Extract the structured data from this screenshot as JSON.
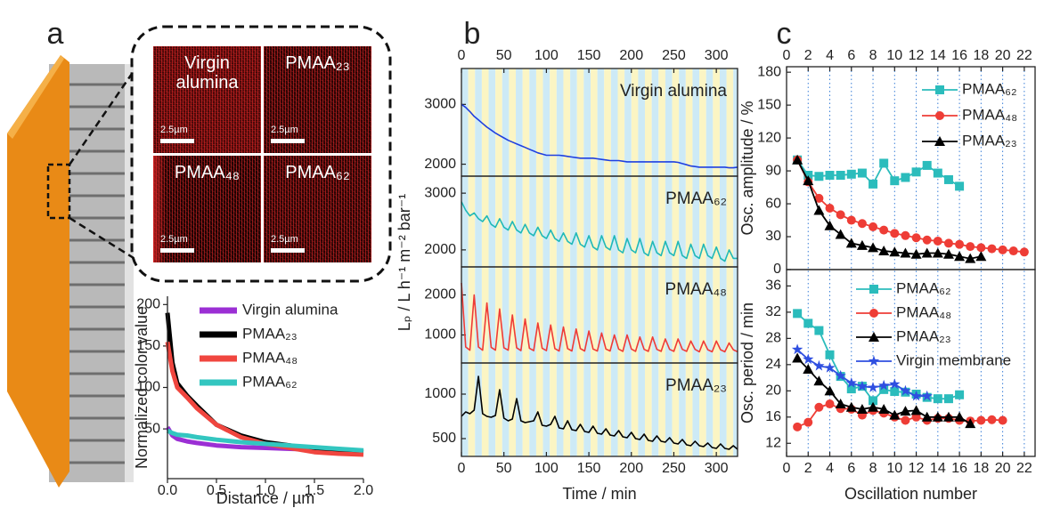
{
  "micrographs": [
    {
      "label": "Virgin alumina",
      "scale": "2.5µm"
    },
    {
      "label": "PMAA₂₃",
      "scale": "2.5µm"
    },
    {
      "label": "PMAA₄₈",
      "scale": "2.5µm"
    },
    {
      "label": "PMAA₆₂",
      "scale": "2.5µm"
    }
  ],
  "chart_data": [
    {
      "type": "line",
      "panel": "a",
      "xlabel": "Distance / µm",
      "ylabel": "Normalized color value",
      "x": [
        0,
        0.05,
        0.1,
        0.2,
        0.3,
        0.5,
        0.75,
        1,
        1.25,
        1.5,
        1.75,
        2
      ],
      "xlim": [
        0,
        2
      ],
      "xticks": [
        {
          "value": 0,
          "label": "0.0"
        },
        {
          "value": 0.5,
          "label": "0.5"
        },
        {
          "value": 1,
          "label": "1.0"
        },
        {
          "value": 1.5,
          "label": "1.5"
        },
        {
          "value": 2,
          "label": "2.0"
        }
      ],
      "ylim": [
        -10,
        210
      ],
      "yticks": [
        50,
        100,
        150,
        200
      ],
      "legend": "upper right",
      "series": [
        {
          "name": "Virgin alumina",
          "color": "#9b2fd4",
          "values": [
            52,
            42,
            38,
            35,
            33,
            30,
            28,
            27,
            26,
            25,
            24,
            23
          ]
        },
        {
          "name": "PMAA₂₃",
          "color": "#000000",
          "values": [
            190,
            130,
            105,
            90,
            78,
            55,
            42,
            34,
            30,
            26,
            24,
            22
          ]
        },
        {
          "name": "PMAA₄₈",
          "color": "#f0463f",
          "values": [
            155,
            120,
            100,
            88,
            75,
            55,
            40,
            32,
            27,
            22,
            20,
            19
          ]
        },
        {
          "name": "PMAA₆₂",
          "color": "#33c6c0",
          "values": [
            48,
            45,
            43,
            42,
            40,
            37,
            34,
            32,
            30,
            28,
            26,
            24
          ]
        }
      ]
    },
    {
      "type": "stacked-line",
      "panel": "b",
      "xlabel": "Time / min",
      "ylabel": "Lₚ / L h⁻¹ m⁻² bar⁻¹",
      "x": [
        0,
        5,
        10,
        15,
        20,
        25,
        30,
        35,
        40,
        45,
        50,
        55,
        60,
        65,
        70,
        75,
        80,
        85,
        90,
        95,
        100,
        105,
        110,
        115,
        120,
        125,
        130,
        135,
        140,
        145,
        150,
        155,
        160,
        165,
        170,
        175,
        180,
        185,
        190,
        195,
        200,
        205,
        210,
        215,
        220,
        225,
        230,
        235,
        240,
        245,
        250,
        255,
        260,
        265,
        270,
        275,
        280,
        285,
        290,
        295,
        300,
        305,
        310,
        315,
        320,
        325
      ],
      "xlim": [
        0,
        325
      ],
      "xticks": [
        0,
        50,
        100,
        150,
        200,
        250,
        300
      ],
      "subplots": [
        {
          "ylim": [
            1800,
            3600
          ],
          "yticks": [
            2000,
            3000
          ],
          "series": [
            {
              "name": "Virgin alumina",
              "color": "#1f3fe0",
              "values": [
                3000,
                2950,
                2880,
                2800,
                2740,
                2680,
                2620,
                2570,
                2520,
                2480,
                2440,
                2400,
                2370,
                2340,
                2310,
                2280,
                2250,
                2220,
                2190,
                2170,
                2150,
                2150,
                2150,
                2150,
                2140,
                2130,
                2120,
                2110,
                2100,
                2100,
                2100,
                2100,
                2090,
                2080,
                2070,
                2060,
                2060,
                2060,
                2050,
                2040,
                2040,
                2040,
                2040,
                2040,
                2040,
                2040,
                2040,
                2040,
                2040,
                2040,
                2040,
                2030,
                2010,
                1990,
                1970,
                1960,
                1950,
                1950,
                1950,
                1950,
                1950,
                1950,
                1950,
                1940,
                1940,
                1950
              ]
            }
          ]
        },
        {
          "ylim": [
            1700,
            3300
          ],
          "yticks": [
            2000,
            3000
          ],
          "series": [
            {
              "name": "PMAA₆₂",
              "color": "#1fb8b8",
              "values": [
                2850,
                2700,
                2600,
                2650,
                2550,
                2500,
                2600,
                2450,
                2400,
                2550,
                2400,
                2350,
                2500,
                2350,
                2300,
                2450,
                2300,
                2250,
                2400,
                2250,
                2200,
                2350,
                2200,
                2150,
                2300,
                2150,
                2100,
                2300,
                2100,
                2050,
                2250,
                2050,
                2000,
                2250,
                2050,
                2000,
                2250,
                2000,
                1950,
                2200,
                2000,
                1950,
                2200,
                1950,
                1900,
                2150,
                1950,
                1900,
                2150,
                1950,
                1900,
                2150,
                1900,
                1850,
                2100,
                1900,
                1850,
                2100,
                1900,
                1850,
                2050,
                1850,
                1800,
                2000,
                1850,
                1850
              ]
            }
          ]
        },
        {
          "ylim": [
            300,
            2700
          ],
          "yticks": [
            1000,
            2000
          ],
          "series": [
            {
              "name": "PMAA₄₈",
              "color": "#ef3b36",
              "values": [
                2300,
                700,
                620,
                2000,
                700,
                620,
                1800,
                690,
                620,
                1650,
                680,
                620,
                1500,
                680,
                610,
                1400,
                670,
                610,
                1300,
                670,
                610,
                1250,
                660,
                600,
                1200,
                660,
                600,
                1150,
                660,
                600,
                1100,
                650,
                600,
                1050,
                650,
                600,
                1000,
                650,
                590,
                1000,
                650,
                590,
                950,
                640,
                590,
                950,
                640,
                590,
                900,
                640,
                590,
                900,
                640,
                590,
                850,
                640,
                580,
                850,
                630,
                580,
                850,
                630,
                580,
                800,
                630,
                580
              ]
            }
          ]
        },
        {
          "ylim": [
            300,
            1350
          ],
          "yticks": [
            500,
            1000
          ],
          "series": [
            {
              "name": "PMAA₂₃",
              "color": "#000000",
              "values": [
                750,
                800,
                780,
                820,
                1200,
                780,
                750,
                740,
                760,
                1050,
                730,
                700,
                720,
                950,
                700,
                680,
                690,
                700,
                800,
                650,
                640,
                660,
                750,
                620,
                610,
                700,
                600,
                590,
                660,
                580,
                570,
                640,
                560,
                550,
                610,
                540,
                530,
                590,
                520,
                510,
                570,
                500,
                490,
                550,
                480,
                470,
                530,
                470,
                460,
                510,
                450,
                440,
                490,
                430,
                420,
                470,
                420,
                410,
                450,
                400,
                390,
                440,
                390,
                380,
                420,
                380
              ]
            }
          ]
        }
      ]
    },
    {
      "type": "marker-line",
      "panel": "c",
      "xlabel": "Oscillation number",
      "xlim": [
        0,
        23
      ],
      "xticks": [
        0,
        2,
        4,
        6,
        8,
        10,
        12,
        14,
        16,
        18,
        20,
        22
      ],
      "grid": true,
      "subplots": [
        {
          "ylabel": "Osc. amplitude / %",
          "ylim": [
            0,
            185
          ],
          "yticks": [
            0,
            30,
            60,
            90,
            120,
            150,
            180
          ],
          "legend": "upper right",
          "series": [
            {
              "name": "PMAA₆₂",
              "color": "#2bbcbc",
              "marker": "square",
              "x": [
                1,
                2,
                3,
                4,
                5,
                6,
                7,
                8,
                9,
                10,
                11,
                12,
                13,
                14,
                15,
                16
              ],
              "values": [
                100,
                86,
                85,
                86,
                86,
                87,
                88,
                78,
                97,
                81,
                84,
                89,
                95,
                88,
                82,
                76
              ]
            },
            {
              "name": "PMAA₄₈",
              "color": "#ee3d36",
              "marker": "circle",
              "x": [
                1,
                2,
                3,
                4,
                5,
                6,
                7,
                8,
                9,
                10,
                11,
                12,
                13,
                14,
                15,
                16,
                17,
                18,
                19,
                20,
                21,
                22
              ],
              "values": [
                100,
                80,
                65,
                56,
                50,
                45,
                42,
                39,
                36,
                33,
                31,
                29,
                27,
                26,
                24,
                23,
                21,
                20,
                19,
                18,
                17,
                16
              ]
            },
            {
              "name": "PMAA₂₃",
              "color": "#000000",
              "marker": "triangle",
              "x": [
                1,
                2,
                3,
                4,
                5,
                6,
                7,
                8,
                9,
                10,
                11,
                12,
                13,
                14,
                15,
                16,
                17,
                18
              ],
              "values": [
                100,
                81,
                54,
                40,
                32,
                24,
                22,
                20,
                17,
                16,
                15,
                14,
                15,
                15,
                14,
                12,
                10,
                12
              ]
            }
          ]
        },
        {
          "ylabel": "Osc. period / min",
          "ylim": [
            10,
            38.5
          ],
          "yticks": [
            12,
            16,
            20,
            24,
            28,
            32,
            36
          ],
          "legend": "upper center",
          "series": [
            {
              "name": "PMAA₆₂",
              "color": "#2bbcbc",
              "marker": "square",
              "x": [
                1,
                2,
                3,
                4,
                5,
                6,
                7,
                8,
                9,
                10,
                11,
                12,
                13,
                14,
                15,
                16
              ],
              "values": [
                31.8,
                30.3,
                29.2,
                25.5,
                22.2,
                20.3,
                20.7,
                18.5,
                20.2,
                19.9,
                19.8,
                19.5,
                19,
                18.8,
                18.8,
                19.4
              ]
            },
            {
              "name": "PMAA₄₈",
              "color": "#ee3d36",
              "marker": "circle",
              "x": [
                1,
                2,
                3,
                4,
                5,
                6,
                7,
                8,
                9,
                10,
                11,
                12,
                13,
                14,
                15,
                16,
                17,
                18,
                19,
                20
              ],
              "values": [
                14.5,
                15.2,
                17.5,
                18,
                17.3,
                17.2,
                16.3,
                17,
                16.6,
                16,
                15.5,
                16,
                15.5,
                15.8,
                15.8,
                15.5,
                15.4,
                15.5,
                15.6,
                15.5
              ]
            },
            {
              "name": "PMAA₂₃",
              "color": "#000000",
              "marker": "triangle",
              "x": [
                1,
                2,
                3,
                4,
                5,
                6,
                7,
                8,
                9,
                10,
                11,
                12,
                13,
                14,
                15,
                16,
                17
              ],
              "values": [
                25,
                23.3,
                21.5,
                20,
                18,
                17.5,
                17.2,
                17.5,
                17.2,
                16.3,
                16.9,
                17,
                16,
                16,
                16,
                16,
                15
              ]
            },
            {
              "name": "Virgin membrane",
              "color": "#2f4fe0",
              "marker": "star",
              "x": [
                1,
                2,
                3,
                4,
                5,
                6,
                7,
                8,
                9,
                10,
                11,
                12,
                13
              ],
              "values": [
                26.3,
                24.8,
                23.8,
                23.5,
                22.3,
                21.2,
                20.7,
                20.5,
                20.8,
                21,
                20,
                19.2,
                19.2
              ]
            }
          ]
        }
      ]
    }
  ]
}
